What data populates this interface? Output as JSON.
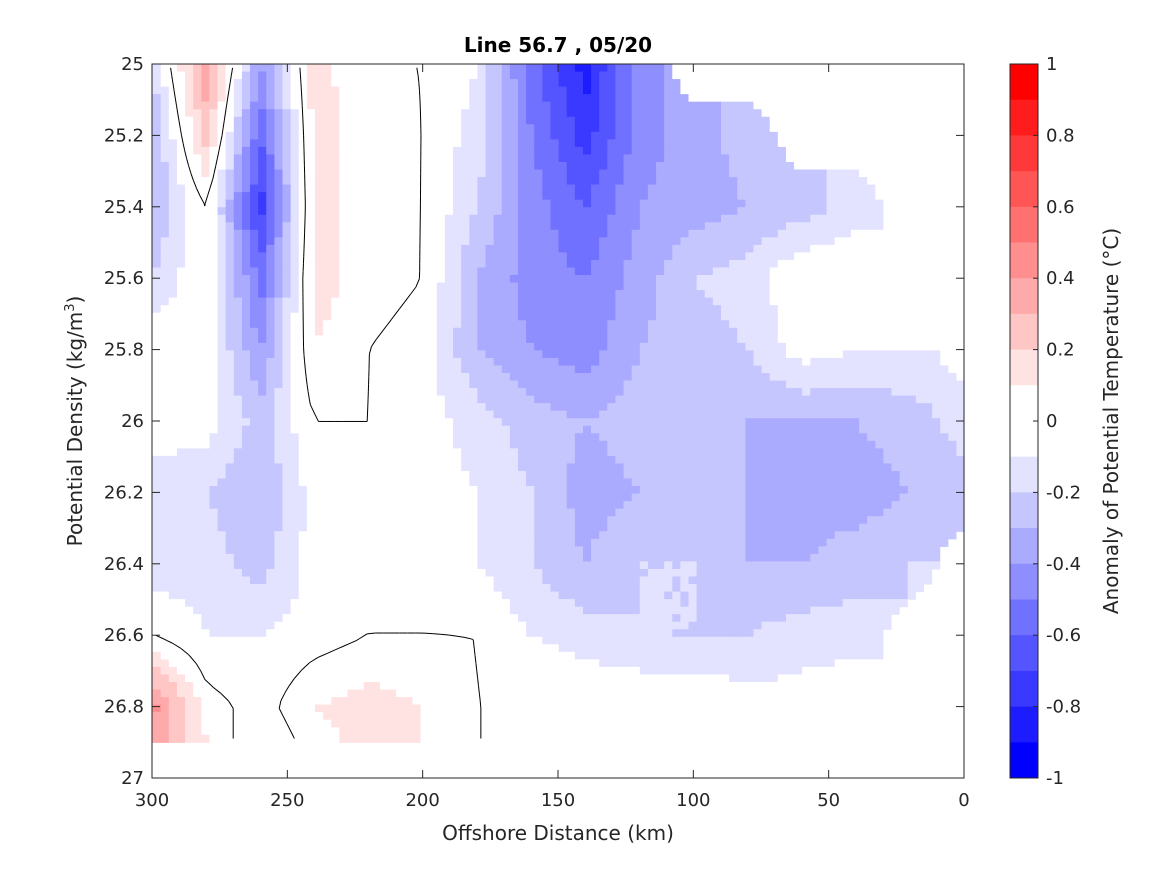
{
  "chart_data": {
    "type": "heatmap",
    "title": "Line 56.7 , 05/20",
    "xlabel": "Offshore Distance (km)",
    "ylabel_prefix": "Potential Density (kg/m",
    "ylabel_exponent": "3",
    "ylabel_suffix": ")",
    "xlim": [
      300,
      0
    ],
    "ylim": [
      25,
      27
    ],
    "x_reversed": true,
    "y_reversed": true,
    "x_ticks": [
      300,
      250,
      200,
      150,
      100,
      50,
      0
    ],
    "x_tick_labels": [
      "300",
      "250",
      "200",
      "150",
      "100",
      "50",
      "0"
    ],
    "y_ticks": [
      25,
      25.2,
      25.4,
      25.6,
      25.8,
      26,
      26.2,
      26.4,
      26.6,
      26.8,
      27
    ],
    "y_tick_labels": [
      "25",
      "25.2",
      "25.4",
      "25.6",
      "25.8",
      "26",
      "26.2",
      "26.4",
      "26.6",
      "26.8",
      "27"
    ],
    "grid": false,
    "colorbar": {
      "label": "Anomaly of Potential Temperature (°C)",
      "range": [
        -1,
        1
      ],
      "ticks": [
        1,
        0.8,
        0.6,
        0.4,
        0.2,
        0,
        -0.2,
        -0.4,
        -0.6,
        -0.8,
        -1
      ],
      "tick_labels": [
        "1",
        "0.8",
        "0.6",
        "0.4",
        "0.2",
        "0",
        "-0.2",
        "-0.4",
        "-0.6",
        "-0.8",
        "-1"
      ],
      "levels": [
        {
          "range": [
            0.9,
            1.0
          ],
          "color": "#ff0000"
        },
        {
          "range": [
            0.8,
            0.9
          ],
          "color": "#ff1c1c"
        },
        {
          "range": [
            0.7,
            0.8
          ],
          "color": "#ff3939"
        },
        {
          "range": [
            0.6,
            0.7
          ],
          "color": "#ff5555"
        },
        {
          "range": [
            0.5,
            0.6
          ],
          "color": "#ff7171"
        },
        {
          "range": [
            0.4,
            0.5
          ],
          "color": "#ff8e8e"
        },
        {
          "range": [
            0.3,
            0.4
          ],
          "color": "#ffaaaa"
        },
        {
          "range": [
            0.2,
            0.3
          ],
          "color": "#ffc6c6"
        },
        {
          "range": [
            0.1,
            0.2
          ],
          "color": "#ffe3e3"
        },
        {
          "range": [
            -0.1,
            0.1
          ],
          "color": "#ffffff"
        },
        {
          "range": [
            -0.2,
            -0.1
          ],
          "color": "#e3e3ff"
        },
        {
          "range": [
            -0.3,
            -0.2
          ],
          "color": "#c6c6ff"
        },
        {
          "range": [
            -0.4,
            -0.3
          ],
          "color": "#aaaaff"
        },
        {
          "range": [
            -0.5,
            -0.4
          ],
          "color": "#8e8eff"
        },
        {
          "range": [
            -0.6,
            -0.5
          ],
          "color": "#7171ff"
        },
        {
          "range": [
            -0.7,
            -0.6
          ],
          "color": "#5555ff"
        },
        {
          "range": [
            -0.8,
            -0.7
          ],
          "color": "#3939ff"
        },
        {
          "range": [
            -0.9,
            -0.8
          ],
          "color": "#1c1cff"
        },
        {
          "range": [
            -1.0,
            -0.9
          ],
          "color": "#0000ff"
        }
      ]
    },
    "field": {
      "x": [
        0,
        20,
        40,
        60,
        80,
        100,
        120,
        140,
        160,
        180,
        200,
        220,
        240,
        260,
        280,
        300
      ],
      "y": [
        25.0,
        25.2,
        25.4,
        25.6,
        25.8,
        26.0,
        26.2,
        26.4,
        26.6,
        26.8,
        26.9
      ],
      "z": [
        [
          null,
          null,
          null,
          null,
          null,
          null,
          -0.4,
          -0.85,
          -0.55,
          -0.1,
          0.0,
          0.0,
          0.15,
          -0.4,
          0.4,
          -0.2
        ],
        [
          null,
          null,
          null,
          null,
          -0.25,
          -0.35,
          -0.45,
          -0.75,
          -0.5,
          -0.15,
          0.0,
          0.05,
          0.15,
          -0.6,
          0.25,
          -0.3
        ],
        [
          null,
          null,
          -0.15,
          -0.25,
          -0.3,
          -0.35,
          -0.4,
          -0.6,
          -0.45,
          -0.2,
          0.0,
          0.05,
          0.15,
          -0.75,
          0.0,
          -0.3
        ],
        [
          null,
          null,
          0.0,
          0.0,
          -0.15,
          -0.2,
          -0.35,
          -0.5,
          -0.45,
          -0.3,
          0.0,
          0.05,
          0.15,
          -0.55,
          0.0,
          -0.2
        ],
        [
          null,
          -0.1,
          -0.1,
          -0.05,
          -0.2,
          -0.25,
          -0.3,
          -0.45,
          -0.4,
          -0.3,
          -0.05,
          0.0,
          0.1,
          -0.4,
          -0.05,
          0.0
        ],
        [
          -0.15,
          -0.25,
          -0.3,
          -0.3,
          -0.3,
          -0.25,
          -0.25,
          -0.3,
          -0.25,
          -0.15,
          -0.05,
          0.0,
          0.0,
          -0.25,
          -0.05,
          0.0
        ],
        [
          -0.25,
          -0.3,
          -0.35,
          -0.35,
          -0.3,
          -0.25,
          -0.3,
          -0.35,
          -0.2,
          -0.1,
          -0.05,
          0.0,
          -0.05,
          -0.3,
          -0.2,
          -0.2
        ],
        [
          null,
          -0.2,
          -0.25,
          -0.3,
          -0.3,
          -0.2,
          -0.2,
          -0.3,
          -0.2,
          -0.1,
          0.0,
          0.0,
          -0.05,
          -0.25,
          -0.15,
          -0.15
        ],
        [
          null,
          null,
          -0.15,
          -0.15,
          -0.2,
          -0.2,
          -0.2,
          -0.15,
          -0.1,
          0.0,
          0.0,
          0.0,
          -0.05,
          -0.1,
          -0.1,
          0.0
        ],
        [
          null,
          null,
          0.0,
          -0.05,
          -0.05,
          0.0,
          0.0,
          0.0,
          0.0,
          0.0,
          0.1,
          0.15,
          0.1,
          -0.05,
          0.05,
          0.45
        ],
        [
          null,
          null,
          null,
          null,
          null,
          0.0,
          0.0,
          0.0,
          0.0,
          0.0,
          0.1,
          0.15,
          0.05,
          -0.1,
          0.1,
          0.35
        ]
      ]
    }
  }
}
